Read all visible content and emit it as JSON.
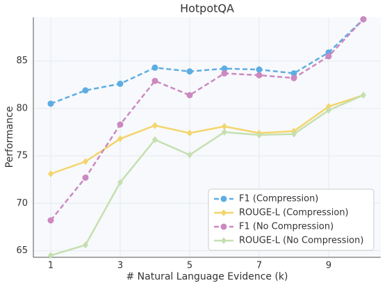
{
  "chart_data": {
    "type": "line",
    "title": "HotpotQA",
    "x_label": "# Natural Language Evidence (k)",
    "y_label": "Performance",
    "x": [
      1,
      2,
      3,
      4,
      5,
      6,
      7,
      8,
      9,
      10
    ],
    "xlim": [
      0.5,
      10.5
    ],
    "xticks": [
      1,
      3,
      5,
      7,
      9
    ],
    "ylim": [
      64.3,
      89.6
    ],
    "yticks": [
      65,
      70,
      75,
      80,
      85
    ],
    "grid": true,
    "legend": "lower-right",
    "series": [
      {
        "name": "F1 (Compression)",
        "color": "#5dade2",
        "dashed": true,
        "marker": "circle",
        "values": [
          80.5,
          81.9,
          82.6,
          84.3,
          83.9,
          84.2,
          84.1,
          83.7,
          85.9,
          89.4
        ]
      },
      {
        "name": "ROUGE-L (Compression)",
        "color": "#f4d56c",
        "dashed": false,
        "marker": "diamond",
        "values": [
          73.1,
          74.4,
          76.8,
          78.2,
          77.4,
          78.1,
          77.4,
          77.6,
          80.2,
          81.4
        ]
      },
      {
        "name": "F1 (No Compression)",
        "color": "#cc88c0",
        "dashed": true,
        "marker": "circle",
        "values": [
          68.2,
          72.7,
          78.3,
          82.9,
          81.4,
          83.7,
          83.5,
          83.2,
          85.5,
          89.4
        ]
      },
      {
        "name": "ROUGE-L (No Compression)",
        "color": "#c5dfb0",
        "dashed": false,
        "marker": "diamond",
        "values": [
          64.5,
          65.6,
          72.2,
          76.7,
          75.1,
          77.5,
          77.2,
          77.3,
          79.8,
          81.4
        ]
      }
    ]
  }
}
